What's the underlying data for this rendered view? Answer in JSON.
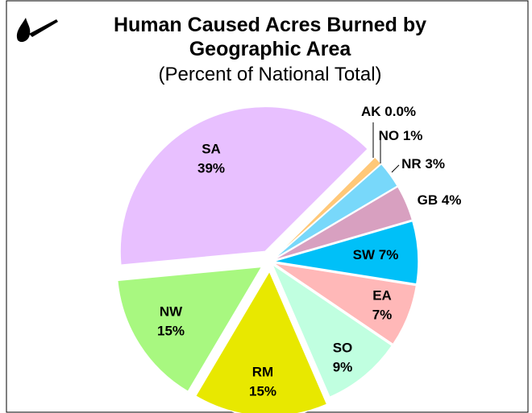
{
  "chart_data": {
    "type": "pie",
    "title": "Human Caused Acres Burned by Geographic Area",
    "subtitle": "(Percent of National Total)",
    "categories": [
      "AK",
      "NO",
      "NR",
      "GB",
      "SW",
      "EA",
      "SO",
      "RM",
      "NW",
      "SA"
    ],
    "values": [
      0,
      1,
      3,
      4,
      7,
      7,
      9,
      15,
      15,
      39
    ],
    "value_labels": [
      "0.0%",
      "1%",
      "3%",
      "4%",
      "7%",
      "7%",
      "9%",
      "15%",
      "15%",
      "39%"
    ],
    "colors": [
      "#f8d890",
      "#ffc878",
      "#78d8fa",
      "#d8a0c0",
      "#00c0f8",
      "#ffb8b8",
      "#c0ffe0",
      "#e8e800",
      "#a8f880",
      "#e8c0ff"
    ]
  }
}
